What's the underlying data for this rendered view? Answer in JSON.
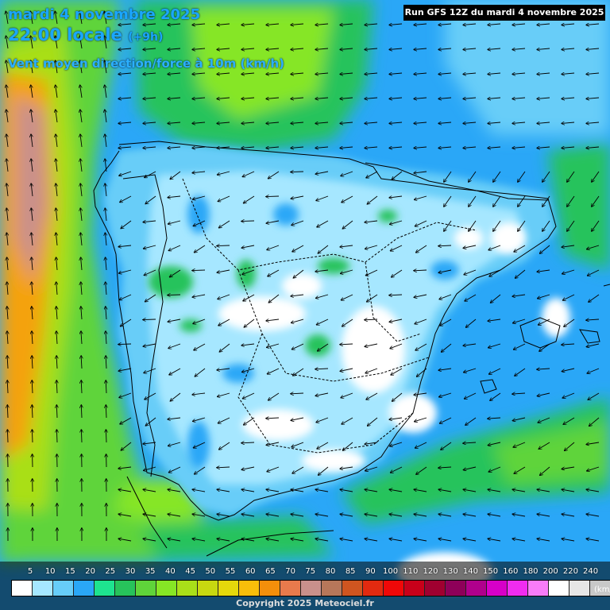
{
  "header": {
    "date": "mardi 4 novembre 2025",
    "time": "22:00 locale",
    "offset": "(+9h)",
    "parameter": "Vent moyen direction/force à 10m (km/h)",
    "run": "Run GFS 12Z du mardi 4 novembre 2025"
  },
  "legend": {
    "unit": "(km/h)",
    "ticks": [
      "5",
      "10",
      "15",
      "20",
      "25",
      "30",
      "35",
      "40",
      "45",
      "50",
      "55",
      "60",
      "65",
      "70",
      "75",
      "80",
      "85",
      "90",
      "100",
      "110",
      "120",
      "130",
      "140",
      "150",
      "160",
      "180",
      "200",
      "220",
      "240"
    ],
    "colors": [
      "#ffffff",
      "#a6e7ff",
      "#67cdf8",
      "#2aa7f7",
      "#1ee38f",
      "#27c35b",
      "#5fd43a",
      "#86e625",
      "#a9df19",
      "#c8d810",
      "#e5d80b",
      "#f8be0a",
      "#f48f0b",
      "#e87a4c",
      "#c9908b",
      "#b7775a",
      "#cf5520",
      "#e22a10",
      "#f00808",
      "#c8001a",
      "#a00030",
      "#8e0059",
      "#b0008c",
      "#d700c8",
      "#f02cf0",
      "#f87cf8",
      "#ffffff",
      "#e6e6e6",
      "#c8c8c8"
    ]
  },
  "map": {
    "region": "Péninsule Ibérique",
    "background_sea_color": "#2aa7f7",
    "land_light_color": "#a6e7ff"
  },
  "copyright": "Copyright 2025 Meteociel.fr"
}
